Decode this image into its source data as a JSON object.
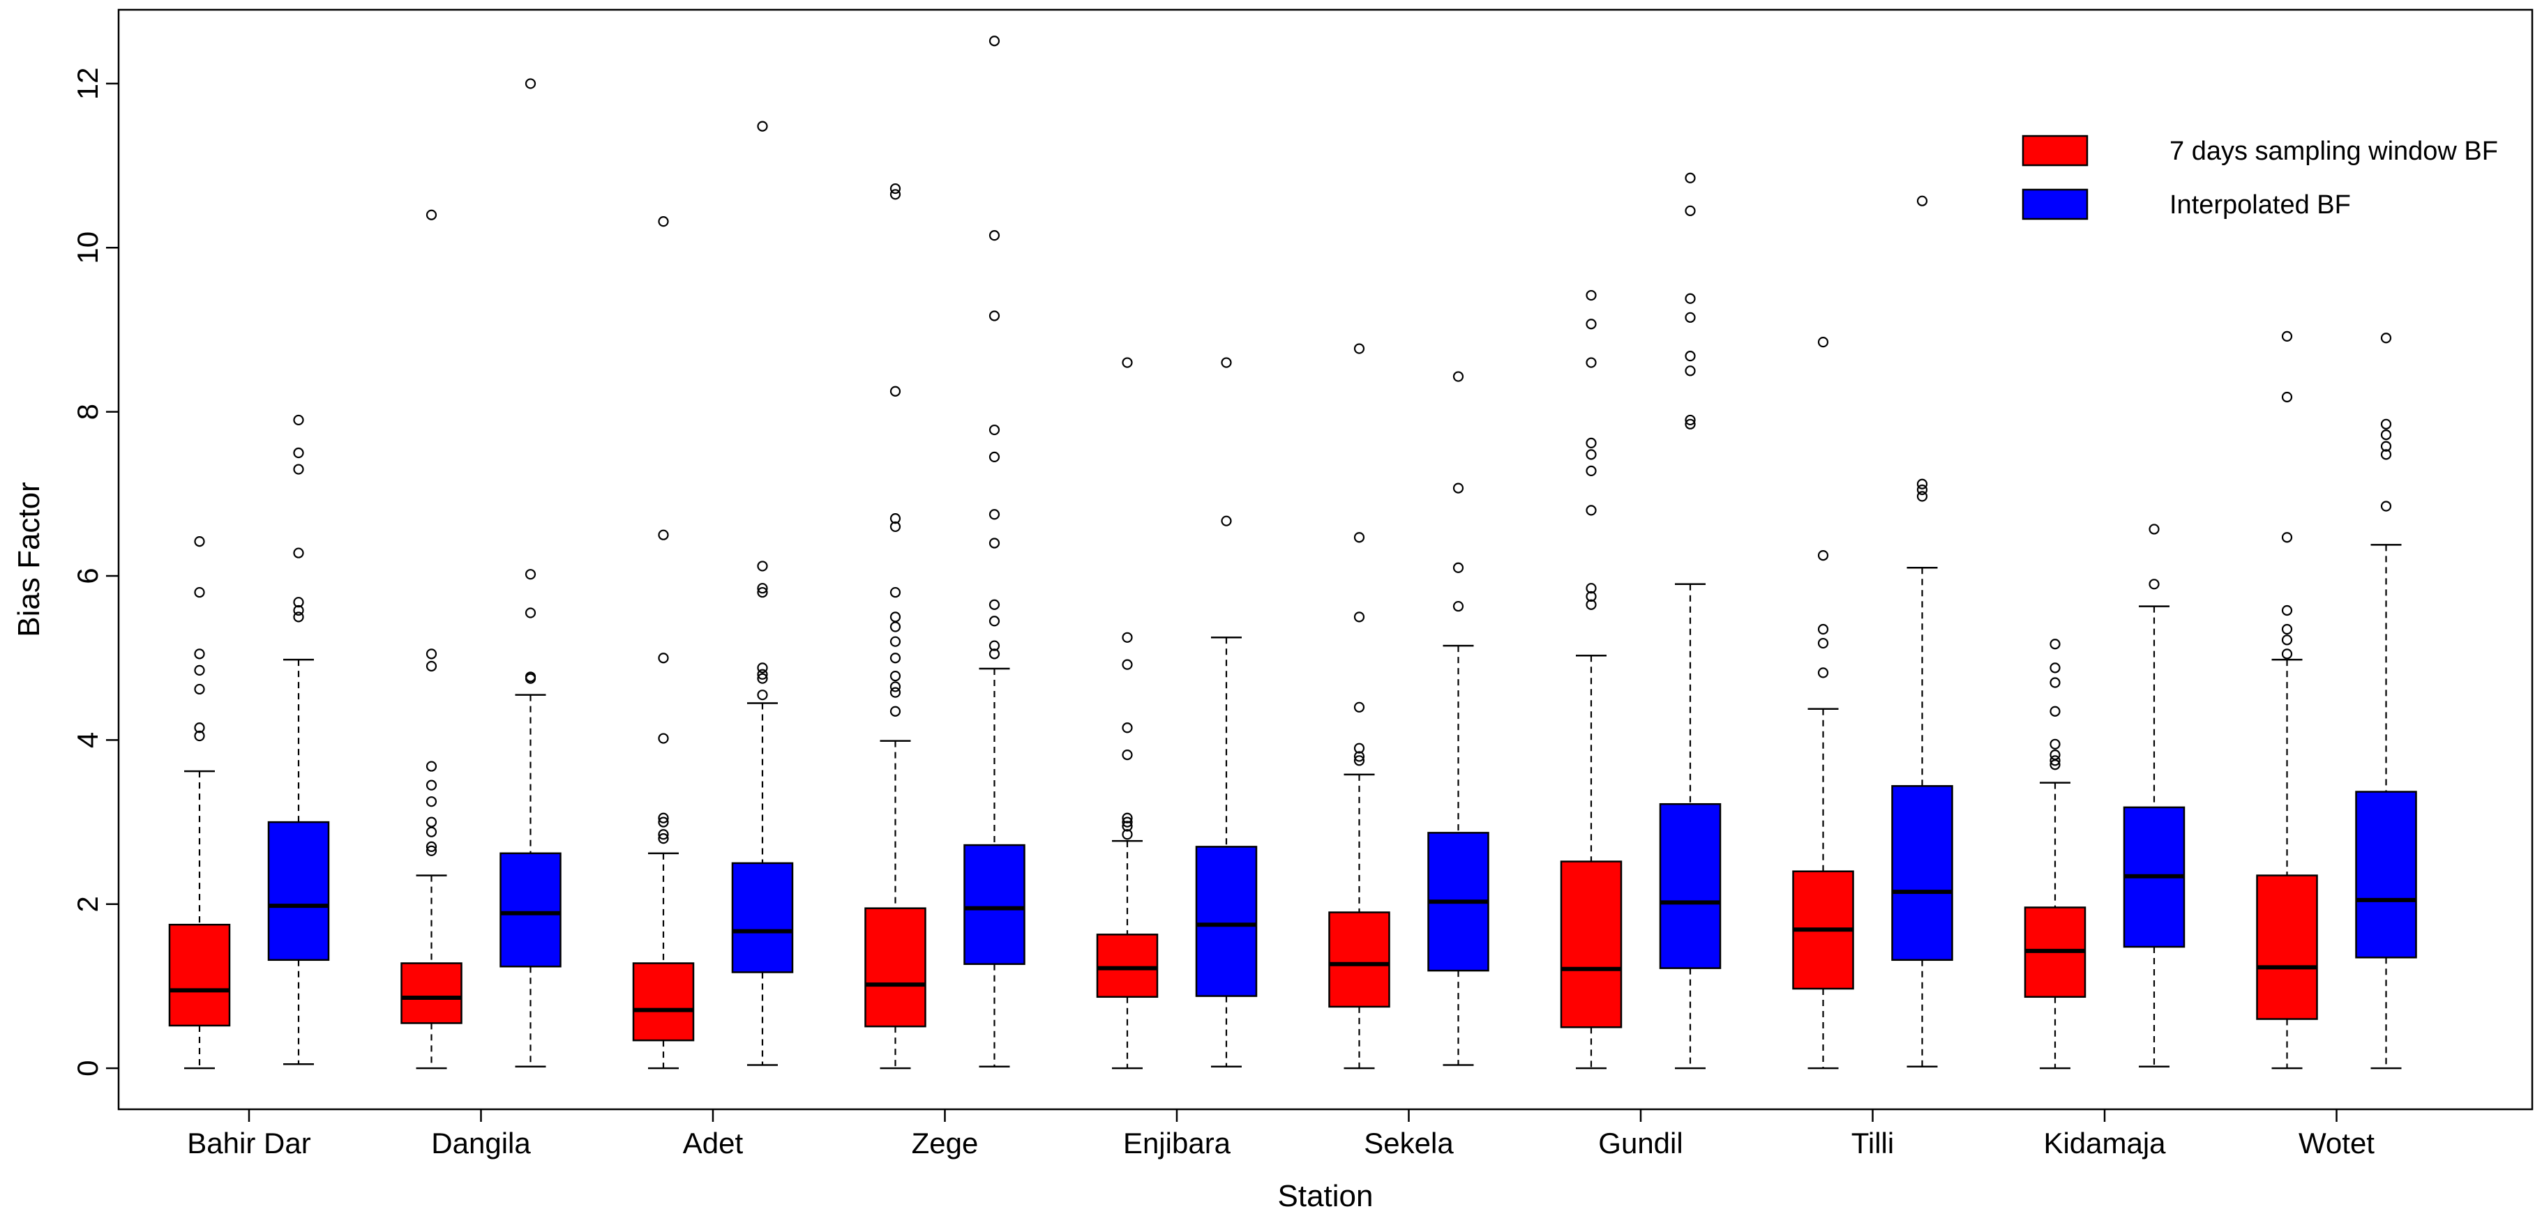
{
  "chart_data": {
    "type": "boxplot",
    "xlabel": "Station",
    "ylabel": "Bias Factor",
    "ylim": [
      -0.5,
      12.9
    ],
    "yticks": [
      0,
      2,
      4,
      6,
      8,
      10,
      12
    ],
    "categories": [
      "Bahir Dar",
      "Dangila",
      "Adet",
      "Zege",
      "Enjibara",
      "Sekela",
      "Gundil",
      "Tilli",
      "Kidamaja",
      "Wotet"
    ],
    "legend": {
      "placement": "top-right"
    },
    "colors": {
      "7 days sampling window BF": "#ff0000",
      "Interpolated BF": "#0000ff"
    },
    "series": [
      {
        "name": "7 days sampling window BF",
        "color": "#ff0000",
        "boxes": [
          {
            "min": 0.0,
            "q1": 0.52,
            "median": 0.95,
            "q3": 1.75,
            "max": 3.62,
            "outliers": [
              4.05,
              4.15,
              4.62,
              4.85,
              5.05,
              5.8,
              6.42
            ]
          },
          {
            "min": 0.0,
            "q1": 0.55,
            "median": 0.86,
            "q3": 1.28,
            "max": 2.35,
            "outliers": [
              2.65,
              2.7,
              2.88,
              3.0,
              3.25,
              3.45,
              3.68,
              4.9,
              5.05,
              10.4
            ]
          },
          {
            "min": 0.0,
            "q1": 0.34,
            "median": 0.71,
            "q3": 1.28,
            "max": 2.62,
            "outliers": [
              2.8,
              2.85,
              3.0,
              3.05,
              4.02,
              5.0,
              6.5,
              10.32
            ]
          },
          {
            "min": 0.0,
            "q1": 0.51,
            "median": 1.02,
            "q3": 1.95,
            "max": 3.99,
            "outliers": [
              4.35,
              4.58,
              4.65,
              4.78,
              5.0,
              5.2,
              5.38,
              5.5,
              5.8,
              6.6,
              6.7,
              8.25,
              10.65,
              10.72
            ]
          },
          {
            "min": 0.0,
            "q1": 0.87,
            "median": 1.22,
            "q3": 1.63,
            "max": 2.77,
            "outliers": [
              2.85,
              2.95,
              3.0,
              3.05,
              3.82,
              4.15,
              4.92,
              5.25,
              8.6
            ]
          },
          {
            "min": 0.0,
            "q1": 0.75,
            "median": 1.27,
            "q3": 1.9,
            "max": 3.58,
            "outliers": [
              3.75,
              3.8,
              3.9,
              4.4,
              5.5,
              6.47,
              8.77
            ]
          },
          {
            "min": 0.0,
            "q1": 0.5,
            "median": 1.21,
            "q3": 2.52,
            "max": 5.03,
            "outliers": [
              5.65,
              5.75,
              5.85,
              6.8,
              7.28,
              7.48,
              7.62,
              8.6,
              9.07,
              9.42
            ]
          },
          {
            "min": 0.0,
            "q1": 0.97,
            "median": 1.69,
            "q3": 2.4,
            "max": 4.38,
            "outliers": [
              4.82,
              5.18,
              5.35,
              6.25,
              8.85
            ]
          },
          {
            "min": 0.0,
            "q1": 0.87,
            "median": 1.43,
            "q3": 1.96,
            "max": 3.48,
            "outliers": [
              3.7,
              3.75,
              3.82,
              3.95,
              4.35,
              4.7,
              4.88,
              5.17
            ]
          },
          {
            "min": 0.0,
            "q1": 0.6,
            "median": 1.23,
            "q3": 2.35,
            "max": 4.98,
            "outliers": [
              5.05,
              5.22,
              5.35,
              5.58,
              6.47,
              8.18,
              8.92
            ]
          }
        ]
      },
      {
        "name": "Interpolated BF",
        "color": "#0000ff",
        "boxes": [
          {
            "min": 0.05,
            "q1": 1.32,
            "median": 1.98,
            "q3": 3.0,
            "max": 4.98,
            "outliers": [
              5.5,
              5.58,
              5.68,
              6.28,
              7.3,
              7.5,
              7.9
            ]
          },
          {
            "min": 0.02,
            "q1": 1.24,
            "median": 1.89,
            "q3": 2.62,
            "max": 4.55,
            "outliers": [
              4.75,
              4.77,
              5.55,
              6.02,
              12.0
            ]
          },
          {
            "min": 0.04,
            "q1": 1.17,
            "median": 1.67,
            "q3": 2.5,
            "max": 4.45,
            "outliers": [
              4.55,
              4.75,
              4.8,
              4.88,
              5.8,
              5.85,
              6.12,
              11.48
            ]
          },
          {
            "min": 0.02,
            "q1": 1.27,
            "median": 1.95,
            "q3": 2.72,
            "max": 4.87,
            "outliers": [
              5.05,
              5.15,
              5.45,
              5.65,
              6.4,
              6.75,
              7.45,
              7.78,
              9.17,
              10.15,
              12.52
            ]
          },
          {
            "min": 0.02,
            "q1": 0.88,
            "median": 1.75,
            "q3": 2.7,
            "max": 5.25,
            "outliers": [
              6.67,
              8.6
            ]
          },
          {
            "min": 0.04,
            "q1": 1.19,
            "median": 2.03,
            "q3": 2.87,
            "max": 5.15,
            "outliers": [
              5.63,
              6.1,
              7.07,
              8.43
            ]
          },
          {
            "min": 0.0,
            "q1": 1.22,
            "median": 2.02,
            "q3": 3.22,
            "max": 5.9,
            "outliers": [
              7.85,
              7.9,
              8.5,
              8.68,
              9.15,
              9.38,
              10.45,
              10.85
            ]
          },
          {
            "min": 0.02,
            "q1": 1.32,
            "median": 2.15,
            "q3": 3.44,
            "max": 6.1,
            "outliers": [
              6.97,
              7.05,
              7.12,
              10.57
            ]
          },
          {
            "min": 0.02,
            "q1": 1.48,
            "median": 2.34,
            "q3": 3.18,
            "max": 5.63,
            "outliers": [
              5.9,
              6.57
            ]
          },
          {
            "min": 0.0,
            "q1": 1.35,
            "median": 2.05,
            "q3": 3.37,
            "max": 6.38,
            "outliers": [
              6.85,
              7.48,
              7.58,
              7.72,
              7.85,
              8.9
            ]
          }
        ]
      }
    ]
  }
}
